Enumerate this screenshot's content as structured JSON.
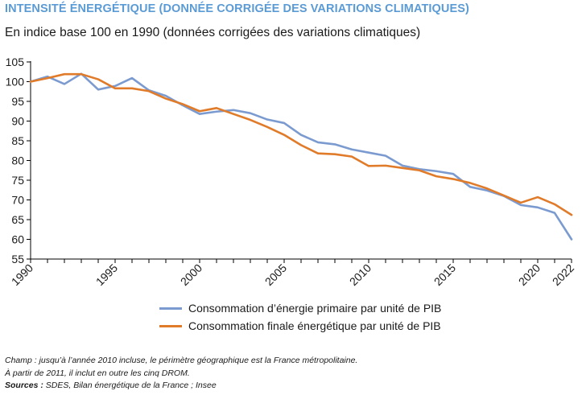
{
  "header": {
    "title": "INTENSITÉ ÉNERGÉTIQUE (DONNÉE CORRIGÉE DES VARIATIONS CLIMATIQUES)",
    "subtitle": "En indice base 100 en 1990 (données corrigées des variations climatiques)"
  },
  "notes": {
    "champ_line1": "Champ : jusqu’à l’année 2010 incluse, le périmètre géographique est la France métropolitaine.",
    "champ_line2": "À partir de 2011, il inclut en outre les cinq DROM.",
    "sources_label": "Sources :",
    "sources_text": " SDES, Bilan énergétique de la France ; Insee"
  },
  "chart_data": {
    "type": "line",
    "title": "INTENSITÉ ÉNERGÉTIQUE (DONNÉE CORRIGÉE DES VARIATIONS CLIMATIQUES)",
    "subtitle": "En indice base 100 en 1990 (données corrigées des variations climatiques)",
    "x": [
      1990,
      1991,
      1992,
      1993,
      1994,
      1995,
      1996,
      1997,
      1998,
      1999,
      2000,
      2001,
      2002,
      2003,
      2004,
      2005,
      2006,
      2007,
      2008,
      2009,
      2010,
      2011,
      2012,
      2013,
      2014,
      2015,
      2016,
      2017,
      2018,
      2019,
      2020,
      2021,
      2022
    ],
    "x_ticks": [
      "1990",
      "1995",
      "2000",
      "2005",
      "2010",
      "2015",
      "2020",
      "2022"
    ],
    "ylim": [
      55,
      105
    ],
    "y_ticks": [
      55,
      60,
      65,
      70,
      75,
      80,
      85,
      90,
      95,
      100,
      105
    ],
    "grid": false,
    "legend_position": "bottom",
    "series": [
      {
        "name": "Consommation d’énergie primaire par unité de PIB",
        "color": "#7b9bd0",
        "values": [
          100,
          101.3,
          99.4,
          102,
          98,
          98.9,
          100.9,
          97.8,
          96.4,
          94,
          91.8,
          92.4,
          92.8,
          92,
          90.4,
          89.5,
          86.5,
          84.6,
          84.1,
          82.8,
          82,
          81.2,
          78.7,
          77.8,
          77.3,
          76.6,
          73.3,
          72.4,
          71,
          68.7,
          68.1,
          66.7,
          60
        ]
      },
      {
        "name": "Consommation finale énergétique par unité de PIB",
        "color": "#e07b2a",
        "values": [
          100,
          100.9,
          101.9,
          101.9,
          100.6,
          98.3,
          98.3,
          97.6,
          95.7,
          94.3,
          92.5,
          93.3,
          91.8,
          90.3,
          88.5,
          86.5,
          83.9,
          81.8,
          81.6,
          81,
          78.6,
          78.7,
          78.1,
          77.5,
          76,
          75.3,
          74.3,
          72.9,
          71.1,
          69.3,
          70.7,
          68.9,
          66.2
        ]
      }
    ]
  }
}
